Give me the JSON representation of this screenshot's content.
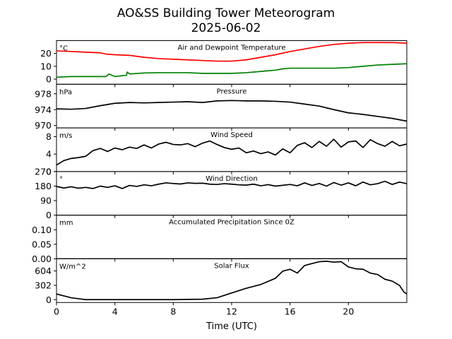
{
  "title": "AO&SS Building Tower Meteorogram",
  "subtitle": "2025-06-02",
  "chart_data": {
    "type": "line",
    "xlabel": "Time (UTC)",
    "xlim": [
      0,
      24
    ],
    "xticks": [
      0,
      4,
      8,
      12,
      16,
      20
    ],
    "panels": [
      {
        "title": "Air and Dewpoint Temperature",
        "unit": "°C",
        "ylim": [
          -4,
          30
        ],
        "yticks": [
          0,
          10,
          20
        ],
        "series": [
          {
            "color": "#ff0000",
            "x": [
              0,
              1,
              2,
              3,
              3.4,
              4,
              5,
              6,
              7,
              8,
              9,
              10,
              11,
              12,
              13,
              14,
              15,
              16,
              17,
              18,
              19,
              20,
              21,
              22,
              23,
              24
            ],
            "y": [
              22,
              21.5,
              21,
              20.5,
              19.5,
              19,
              18.5,
              17,
              16,
              15.5,
              15,
              14.5,
              14,
              14,
              15,
              17,
              19,
              21.5,
              23.5,
              25.5,
              27,
              28,
              28.5,
              28.5,
              28.5,
              28
            ]
          },
          {
            "color": "#008000",
            "x": [
              0,
              1,
              2,
              3,
              3.4,
              3.6,
              4,
              4.8,
              4.85,
              5,
              6,
              7,
              8,
              9,
              10,
              11,
              12,
              13,
              14,
              15,
              15.5,
              16,
              17,
              18,
              19,
              20,
              21,
              22,
              23,
              24
            ],
            "y": [
              1.5,
              2,
              2,
              2,
              2,
              4,
              2,
              3,
              5.5,
              4,
              4.8,
              5,
              5,
              5,
              4.5,
              4.5,
              4.5,
              5,
              6,
              7,
              8,
              8.5,
              8.5,
              8.5,
              8.5,
              9,
              10,
              11,
              11.5,
              12
            ]
          }
        ]
      },
      {
        "title": "Pressure",
        "unit": "hPa",
        "ylim": [
          969.4,
          980.4
        ],
        "yticks": [
          970,
          974,
          978
        ],
        "series": [
          {
            "color": "#000000",
            "x": [
              0,
              1,
              2,
              3,
              4,
              5,
              6,
              7,
              8,
              9,
              10,
              11,
              12,
              13,
              14,
              15,
              16,
              17,
              18,
              19,
              20,
              21,
              22,
              23,
              24
            ],
            "y": [
              974.2,
              974.1,
              974.3,
              975.0,
              975.6,
              975.8,
              975.7,
              975.8,
              975.9,
              976.0,
              975.8,
              976.2,
              976.3,
              976.2,
              976.2,
              976.1,
              975.9,
              975.4,
              974.9,
              974.0,
              973.2,
              972.8,
              972.3,
              971.8,
              971.1
            ]
          }
        ]
      },
      {
        "title": "Wind Speed",
        "unit": "m/s",
        "ylim": [
          0,
          10
        ],
        "yticks": [
          0,
          4,
          8
        ],
        "series": [
          {
            "color": "#000000",
            "x": [
              0,
              0.5,
              1,
              1.5,
              2,
              2.5,
              3,
              3.5,
              4,
              4.5,
              5,
              5.5,
              6,
              6.5,
              7,
              7.5,
              8,
              8.5,
              9,
              9.5,
              10,
              10.5,
              11,
              11.5,
              12,
              12.5,
              13,
              13.5,
              14,
              14.5,
              15,
              15.5,
              16,
              16.5,
              17,
              17.5,
              18,
              18.5,
              19,
              19.5,
              20,
              20.5,
              21,
              21.5,
              22,
              22.5,
              23,
              23.5,
              24
            ],
            "y": [
              1.5,
              2.5,
              3,
              3.2,
              3.5,
              4.8,
              5.3,
              4.6,
              5.4,
              5.0,
              5.6,
              5.3,
              6.1,
              5.4,
              6.3,
              6.7,
              6.2,
              6.1,
              6.4,
              5.7,
              6.5,
              7.0,
              6.2,
              5.5,
              5.1,
              5.4,
              4.3,
              4.7,
              4.1,
              4.5,
              3.8,
              5.2,
              4.3,
              6.0,
              6.6,
              5.5,
              6.9,
              5.8,
              7.4,
              5.6,
              6.8,
              7.0,
              5.5,
              7.3,
              6.4,
              5.8,
              6.9,
              5.9,
              6.3
            ]
          }
        ]
      },
      {
        "title": "Wind Direction",
        "unit": "°",
        "ylim": [
          0,
          270
        ],
        "yticks": [
          0,
          90,
          180,
          270
        ],
        "series": [
          {
            "color": "#000000",
            "x": [
              0,
              0.5,
              1,
              1.5,
              2,
              2.5,
              3,
              3.5,
              4,
              4.5,
              5,
              5.5,
              6,
              6.5,
              7,
              7.5,
              8,
              8.5,
              9,
              9.5,
              10,
              10.5,
              11,
              11.5,
              12,
              12.5,
              13,
              13.5,
              14,
              14.5,
              15,
              15.5,
              16,
              16.5,
              17,
              17.5,
              18,
              18.5,
              19,
              19.5,
              20,
              20.5,
              21,
              21.5,
              22,
              22.5,
              23,
              23.5,
              24
            ],
            "y": [
              178,
              168,
              176,
              167,
              172,
              165,
              180,
              172,
              182,
              165,
              184,
              178,
              188,
              182,
              192,
              200,
              196,
              193,
              200,
              197,
              198,
              192,
              190,
              195,
              192,
              188,
              186,
              192,
              182,
              189,
              180,
              185,
              190,
              182,
              200,
              184,
              196,
              180,
              202,
              186,
              200,
              182,
              205,
              188,
              195,
              210,
              190,
              205,
              195
            ]
          }
        ]
      },
      {
        "title": "Accumulated Precipitation Since 0Z",
        "unit": "mm",
        "ylim": [
          0,
          0.15
        ],
        "yticks": [
          0.0,
          0.05,
          0.1
        ],
        "ytick_labels": [
          "0.00",
          "0.05",
          "0.10"
        ],
        "series": [
          {
            "color": "#000000",
            "x": [
              0,
              24
            ],
            "y": [
              0,
              0
            ]
          }
        ]
      },
      {
        "title": "Solar Flux",
        "unit": "W/m^2",
        "ylim": [
          -60,
          860
        ],
        "yticks": [
          0,
          302,
          604
        ],
        "series": [
          {
            "color": "#000000",
            "x": [
              0,
              0.5,
              1,
              1.5,
              2,
              4,
              6,
              8,
              10,
              11,
              12,
              13,
              14,
              15,
              15.5,
              16,
              16.5,
              17,
              17.5,
              18,
              18.5,
              19,
              19.5,
              20,
              20.5,
              21,
              21.5,
              22,
              22.5,
              23,
              23.5,
              23.8,
              24
            ],
            "y": [
              120,
              80,
              40,
              20,
              0,
              0,
              0,
              0,
              10,
              40,
              140,
              240,
              320,
              450,
              600,
              640,
              560,
              720,
              760,
              800,
              810,
              790,
              800,
              690,
              650,
              640,
              560,
              530,
              430,
              390,
              300,
              160,
              120
            ]
          }
        ]
      }
    ]
  }
}
